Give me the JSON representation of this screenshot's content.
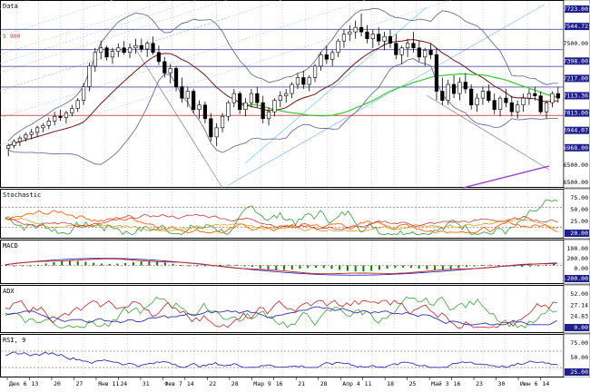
{
  "colors": {
    "grid": "#b8b8b8",
    "candle": "#000000",
    "bollinger": "#5a5aa0",
    "sma_dark": "#7a1010",
    "green_line": "#33cc33",
    "purple_line": "#9933cc",
    "level_blue": "#5050a0",
    "level_red": "#d05050",
    "support_line": "#7777aa",
    "fib_fan": "#9bd0e0",
    "axis_label_bg": "#1f1f8f",
    "stoch_k": "#30a030",
    "stoch_d": "#ff6000",
    "stoch_slow": "#cc9900",
    "stoch_red": "#cc2020",
    "macd_line": "#3030c0",
    "macd_signal": "#cc2020",
    "macd_hist": "#008800",
    "adx_main": "#3030c0",
    "adx_plus": "#33aa33",
    "adx_minus": "#cc2020",
    "rsi": "#3030c0"
  },
  "chart_data": [
    {
      "type": "candlestick",
      "title": "Data",
      "y_axis_labels": [
        "7723.00",
        "7544.72",
        "7500.00",
        "7398.00",
        "7217.00",
        "7113.36",
        "7013.00",
        "6944.07",
        "6968.00",
        "6500.00",
        "6500.00"
      ],
      "highlighted_labels": [
        "7723.00",
        "7544.72",
        "7398.00",
        "7217.00",
        "7113.36",
        "7013.00",
        "6944.07",
        "6968.00"
      ],
      "left_label": "5 900",
      "ylim": [
        6350,
        7900
      ],
      "horizontal_levels": [
        {
          "value": 7723,
          "style": "blue"
        },
        {
          "value": 7545,
          "style": "blue"
        },
        {
          "value": 7398,
          "style": "blue"
        },
        {
          "value": 7217,
          "style": "blue"
        },
        {
          "value": 6968,
          "style": "red"
        }
      ],
      "candles": [
        [
          6680,
          6720,
          6610,
          6705
        ],
        [
          6705,
          6760,
          6680,
          6740
        ],
        [
          6740,
          6790,
          6700,
          6770
        ],
        [
          6770,
          6820,
          6740,
          6800
        ],
        [
          6800,
          6850,
          6760,
          6820
        ],
        [
          6820,
          6880,
          6780,
          6860
        ],
        [
          6860,
          6900,
          6820,
          6880
        ],
        [
          6880,
          6950,
          6850,
          6920
        ],
        [
          6920,
          7000,
          6880,
          6960
        ],
        [
          6960,
          7020,
          6920,
          6950
        ],
        [
          6950,
          7010,
          6900,
          6990
        ],
        [
          6990,
          7060,
          6960,
          7030
        ],
        [
          7030,
          7120,
          7000,
          7100
        ],
        [
          7100,
          7250,
          7060,
          7220
        ],
        [
          7220,
          7430,
          7180,
          7400
        ],
        [
          7400,
          7560,
          7350,
          7520
        ],
        [
          7520,
          7620,
          7460,
          7560
        ],
        [
          7560,
          7580,
          7450,
          7480
        ],
        [
          7480,
          7560,
          7420,
          7530
        ],
        [
          7530,
          7600,
          7480,
          7560
        ],
        [
          7560,
          7620,
          7500,
          7520
        ],
        [
          7520,
          7600,
          7470,
          7560
        ],
        [
          7560,
          7640,
          7510,
          7580
        ],
        [
          7580,
          7640,
          7520,
          7550
        ],
        [
          7550,
          7620,
          7480,
          7600
        ],
        [
          7600,
          7660,
          7500,
          7520
        ],
        [
          7520,
          7580,
          7410,
          7440
        ],
        [
          7440,
          7480,
          7300,
          7340
        ],
        [
          7340,
          7420,
          7250,
          7380
        ],
        [
          7380,
          7400,
          7180,
          7220
        ],
        [
          7220,
          7300,
          7080,
          7120
        ],
        [
          7120,
          7220,
          7040,
          7180
        ],
        [
          7180,
          7200,
          6990,
          7020
        ],
        [
          7020,
          7100,
          6940,
          7060
        ],
        [
          7060,
          7090,
          6900,
          6940
        ],
        [
          6940,
          6990,
          6740,
          6780
        ],
        [
          6780,
          6900,
          6700,
          6860
        ],
        [
          6860,
          6990,
          6820,
          6960
        ],
        [
          6960,
          7100,
          6920,
          7080
        ],
        [
          7080,
          7200,
          7040,
          7160
        ],
        [
          7160,
          7180,
          6980,
          7020
        ],
        [
          7020,
          7120,
          6960,
          7080
        ],
        [
          7080,
          7200,
          7040,
          7160
        ],
        [
          7160,
          7220,
          7040,
          7080
        ],
        [
          7080,
          7140,
          6900,
          6940
        ],
        [
          6940,
          7040,
          6880,
          7000
        ],
        [
          7000,
          7120,
          6960,
          7100
        ],
        [
          7100,
          7180,
          7040,
          7140
        ],
        [
          7140,
          7200,
          7080,
          7160
        ],
        [
          7160,
          7260,
          7120,
          7240
        ],
        [
          7240,
          7340,
          7200,
          7300
        ],
        [
          7300,
          7360,
          7200,
          7240
        ],
        [
          7240,
          7320,
          7180,
          7300
        ],
        [
          7300,
          7420,
          7260,
          7400
        ],
        [
          7400,
          7520,
          7360,
          7500
        ],
        [
          7500,
          7580,
          7420,
          7460
        ],
        [
          7460,
          7540,
          7400,
          7520
        ],
        [
          7520,
          7640,
          7480,
          7620
        ],
        [
          7620,
          7720,
          7560,
          7680
        ],
        [
          7680,
          7760,
          7620,
          7700
        ],
        [
          7700,
          7800,
          7640,
          7740
        ],
        [
          7740,
          7860,
          7660,
          7700
        ],
        [
          7700,
          7760,
          7600,
          7640
        ],
        [
          7640,
          7720,
          7560,
          7680
        ],
        [
          7680,
          7740,
          7580,
          7620
        ],
        [
          7620,
          7700,
          7540,
          7660
        ],
        [
          7660,
          7720,
          7560,
          7600
        ],
        [
          7600,
          7680,
          7460,
          7500
        ],
        [
          7500,
          7580,
          7420,
          7560
        ],
        [
          7560,
          7640,
          7480,
          7600
        ],
        [
          7600,
          7700,
          7520,
          7560
        ],
        [
          7560,
          7620,
          7440,
          7480
        ],
        [
          7480,
          7560,
          7400,
          7540
        ],
        [
          7540,
          7600,
          7460,
          7500
        ],
        [
          7500,
          7560,
          7100,
          7180
        ],
        [
          7180,
          7300,
          7060,
          7100
        ],
        [
          7100,
          7280,
          7060,
          7240
        ],
        [
          7240,
          7320,
          7120,
          7160
        ],
        [
          7160,
          7300,
          7100,
          7260
        ],
        [
          7260,
          7340,
          7160,
          7200
        ],
        [
          7200,
          7240,
          7020,
          7060
        ],
        [
          7060,
          7160,
          7000,
          7120
        ],
        [
          7120,
          7220,
          7060,
          7180
        ],
        [
          7180,
          7240,
          7080,
          7100
        ],
        [
          7100,
          7160,
          6980,
          7020
        ],
        [
          7020,
          7140,
          6960,
          7120
        ],
        [
          7120,
          7200,
          7040,
          7080
        ],
        [
          7080,
          7140,
          6960,
          7000
        ],
        [
          7000,
          7100,
          6940,
          7060
        ],
        [
          7060,
          7160,
          7000,
          7120
        ],
        [
          7120,
          7200,
          7060,
          7160
        ],
        [
          7160,
          7220,
          7100,
          7140
        ],
        [
          7140,
          7180,
          6980,
          7000
        ],
        [
          7000,
          7100,
          6940,
          7080
        ],
        [
          7080,
          7180,
          7040,
          7160
        ],
        [
          7160,
          7220,
          7080,
          7120
        ]
      ]
    },
    {
      "type": "line",
      "title": "Stochastic",
      "y_axis_labels": [
        "75.00",
        "50.00",
        "25.00",
        "20.00"
      ],
      "ylim": [
        0,
        100
      ]
    },
    {
      "type": "line",
      "title": "MACD",
      "y_axis_labels": [
        "100.00",
        "200.00",
        "0.00",
        "-200.00"
      ],
      "ylim": [
        -300,
        300
      ]
    },
    {
      "type": "line",
      "title": "ADX",
      "y_axis_labels": [
        "52.00",
        "27.14",
        "24.83",
        "0.00"
      ],
      "ylim": [
        0,
        60
      ]
    },
    {
      "type": "line",
      "title": "RSI, 9",
      "y_axis_labels": [
        "75.00",
        "50.00",
        "25.00"
      ],
      "ylim": [
        0,
        100
      ]
    }
  ],
  "x_axis_labels": [
    "Дек 6",
    "13",
    "20",
    "27",
    "Янв 11",
    "24",
    "31",
    "Фев 7",
    "14",
    "22",
    "28",
    "Мар 9",
    "16",
    "21",
    "28",
    "Апр 4",
    "11",
    "18",
    "25",
    "Май 3",
    "16",
    "23",
    "30",
    "Июн 6",
    "14"
  ]
}
